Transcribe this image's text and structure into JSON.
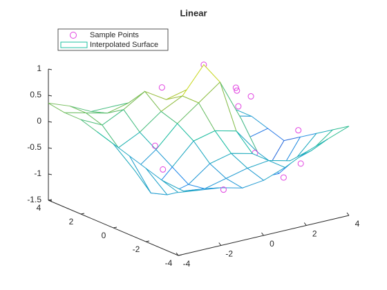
{
  "chart_data": {
    "type": "surface",
    "title": "Linear",
    "xlim": [
      -4,
      4
    ],
    "ylim": [
      -4,
      4
    ],
    "zlim": [
      -1.5,
      1
    ],
    "xticks": [
      -4,
      -2,
      0,
      2,
      4
    ],
    "yticks": [
      -4,
      -2,
      0,
      2,
      4
    ],
    "zticks": [
      -1.5,
      -1,
      -0.5,
      0,
      0.5,
      1
    ],
    "surface": {
      "name": "Interpolated Surface",
      "color": "#1cc0a0",
      "x": [
        -4,
        -3,
        -2,
        -1,
        0,
        1,
        2,
        3,
        4
      ],
      "y": [
        -4,
        -3,
        -2,
        -1,
        0,
        1,
        2,
        3,
        4
      ],
      "z": [
        [
          -0.3,
          -0.35,
          -0.4,
          -0.5,
          -0.45,
          -0.3,
          -0.1,
          0.05,
          0.2
        ],
        [
          -0.2,
          -0.5,
          -0.55,
          -0.45,
          -0.35,
          -0.3,
          -0.4,
          -0.3,
          0.0
        ],
        [
          -0.1,
          -0.7,
          -0.6,
          -0.3,
          -0.2,
          -0.3,
          -0.6,
          -0.6,
          -0.2
        ],
        [
          0.0,
          -0.8,
          -0.4,
          0.0,
          0.1,
          0.0,
          -0.5,
          -1.0,
          -0.4
        ],
        [
          0.1,
          -0.5,
          -0.2,
          0.2,
          0.5,
          0.8,
          0.0,
          -1.2,
          -0.6
        ],
        [
          0.2,
          -0.2,
          0.0,
          0.3,
          0.5,
          1.0,
          0.3,
          -0.6,
          -0.5
        ],
        [
          0.3,
          0.1,
          0.3,
          0.55,
          0.3,
          0.4,
          0.1,
          -0.3,
          -0.4
        ],
        [
          0.3,
          0.2,
          0.1,
          0.2,
          0.1,
          0.0,
          -0.2,
          -0.3,
          -0.4
        ],
        [
          0.35,
          0.2,
          0.0,
          0.0,
          -0.1,
          -0.2,
          -0.3,
          -0.4,
          -0.4
        ]
      ]
    },
    "points": {
      "name": "Sample Points",
      "color": "#e040e0",
      "x": [
        1,
        -0.2,
        -0.3,
        2.2,
        2.6,
        2.4,
        1.8,
        -3.2,
        -2.5,
        0.5,
        2.5,
        3.3,
        -1.5,
        1.5,
        3.6,
        3.0
      ],
      "y": [
        1,
        2.0,
        1.8,
        0.6,
        0.2,
        0.8,
        2.5,
        -2.0,
        -0.6,
        -2.8,
        -3.0,
        -1.8,
        -3.5,
        -1.5,
        -0.5,
        1.5
      ],
      "z": [
        1.0,
        0.55,
        0.3,
        0.5,
        0.35,
        0.4,
        0.2,
        -0.2,
        0.0,
        -0.6,
        -0.5,
        -0.1,
        -0.55,
        -0.4,
        -1.2,
        -0.05
      ]
    }
  }
}
